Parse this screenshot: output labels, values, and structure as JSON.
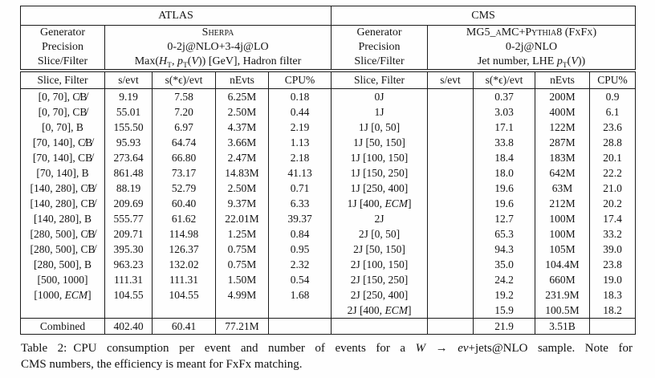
{
  "table": {
    "atlas": {
      "title": "ATLAS",
      "meta": [
        {
          "label": "Generator",
          "value": "Sherpa"
        },
        {
          "label": "Precision",
          "value": "0-2j@NLO+3-4j@LO"
        },
        {
          "label": "Slice/Filter",
          "value": "Max(*H*~T~, *p*~T~(*V*)) [GeV], Hadron filter"
        }
      ],
      "columns": [
        "Slice, Filter",
        "s/evt",
        "s(*ϵ)/evt",
        "nEvts",
        "CPU%"
      ],
      "rows": [
        [
          "[0, 70], C̸B̸",
          "9.19",
          "7.58",
          "6.25M",
          "0.18"
        ],
        [
          "[0, 70], CB̸",
          "55.01",
          "7.20",
          "2.50M",
          "0.44"
        ],
        [
          "[0, 70], B",
          "155.50",
          "6.97",
          "4.37M",
          "2.19"
        ],
        [
          "[70, 140], C̸B̸",
          "95.93",
          "64.74",
          "3.66M",
          "1.13"
        ],
        [
          "[70, 140], CB̸",
          "273.64",
          "66.80",
          "2.47M",
          "2.18"
        ],
        [
          "[70, 140], B",
          "861.48",
          "73.17",
          "14.83M",
          "41.13"
        ],
        [
          "[140, 280], C̸B̸",
          "88.19",
          "52.79",
          "2.50M",
          "0.71"
        ],
        [
          "[140, 280], CB̸",
          "209.69",
          "60.40",
          "9.37M",
          "6.33"
        ],
        [
          "[140, 280], B",
          "555.77",
          "61.62",
          "22.01M",
          "39.37"
        ],
        [
          "[280, 500], C̸B̸",
          "209.71",
          "114.98",
          "1.25M",
          "0.84"
        ],
        [
          "[280, 500], CB̸",
          "395.30",
          "126.37",
          "0.75M",
          "0.95"
        ],
        [
          "[280, 500], B",
          "963.23",
          "132.02",
          "0.75M",
          "2.32"
        ],
        [
          "[500, 1000]",
          "111.31",
          "111.31",
          "1.50M",
          "0.54"
        ],
        [
          "[1000, *ECM*]",
          "104.55",
          "104.55",
          "4.99M",
          "1.68"
        ],
        [
          "",
          "",
          "",
          "",
          ""
        ]
      ],
      "combined": [
        "Combined",
        "402.40",
        "60.41",
        "77.21M",
        ""
      ]
    },
    "cms": {
      "title": "CMS",
      "meta": [
        {
          "label": "Generator",
          "value": "MG5_aMC+Pythia8 (FxFx)"
        },
        {
          "label": "Precision",
          "value": "0-2j@NLO"
        },
        {
          "label": "Slice/Filter",
          "value": "Jet number, LHE *p*~T~(*V*))"
        }
      ],
      "columns": [
        "Slice, Filter",
        "s/evt",
        "s(*ϵ)/evt",
        "nEvts",
        "CPU%"
      ],
      "rows": [
        [
          "0J",
          "",
          "0.37",
          "200M",
          "0.9"
        ],
        [
          "1J",
          "",
          "3.03",
          "400M",
          "6.1"
        ],
        [
          "1J [0, 50]",
          "",
          "17.1",
          "122M",
          "23.6"
        ],
        [
          "1J [50, 150]",
          "",
          "33.8",
          "287M",
          "28.8"
        ],
        [
          "1J [100, 150]",
          "",
          "18.4",
          "183M",
          "20.1"
        ],
        [
          "1J [150, 250]",
          "",
          "18.0",
          "642M",
          "22.2"
        ],
        [
          "1J [250, 400]",
          "",
          "19.6",
          "63M",
          "21.0"
        ],
        [
          "1J [400, *ECM*]",
          "",
          "19.6",
          "212M",
          "20.2"
        ],
        [
          "2J",
          "",
          "12.7",
          "100M",
          "17.4"
        ],
        [
          "2J [0, 50]",
          "",
          "65.3",
          "100M",
          "33.2"
        ],
        [
          "2J [50, 150]",
          "",
          "94.3",
          "105M",
          "39.0"
        ],
        [
          "2J [100, 150]",
          "",
          "35.0",
          "104.4M",
          "23.8"
        ],
        [
          "2J [150, 250]",
          "",
          "24.2",
          "660M",
          "19.0"
        ],
        [
          "2J [250, 400]",
          "",
          "19.2",
          "231.9M",
          "18.3"
        ],
        [
          "2J [400, *ECM*]",
          "",
          "15.9",
          "100.5M",
          "18.2"
        ]
      ],
      "combined": [
        "",
        "",
        "21.9",
        "3.51B",
        ""
      ]
    }
  },
  "caption": {
    "label": "Table 2:",
    "line1": "CPU consumption per event and number of events for a *W* → *eν*+jets@NLO sample. Note for",
    "line2": "CMS numbers, the efficiency is meant for FxFx matching."
  }
}
